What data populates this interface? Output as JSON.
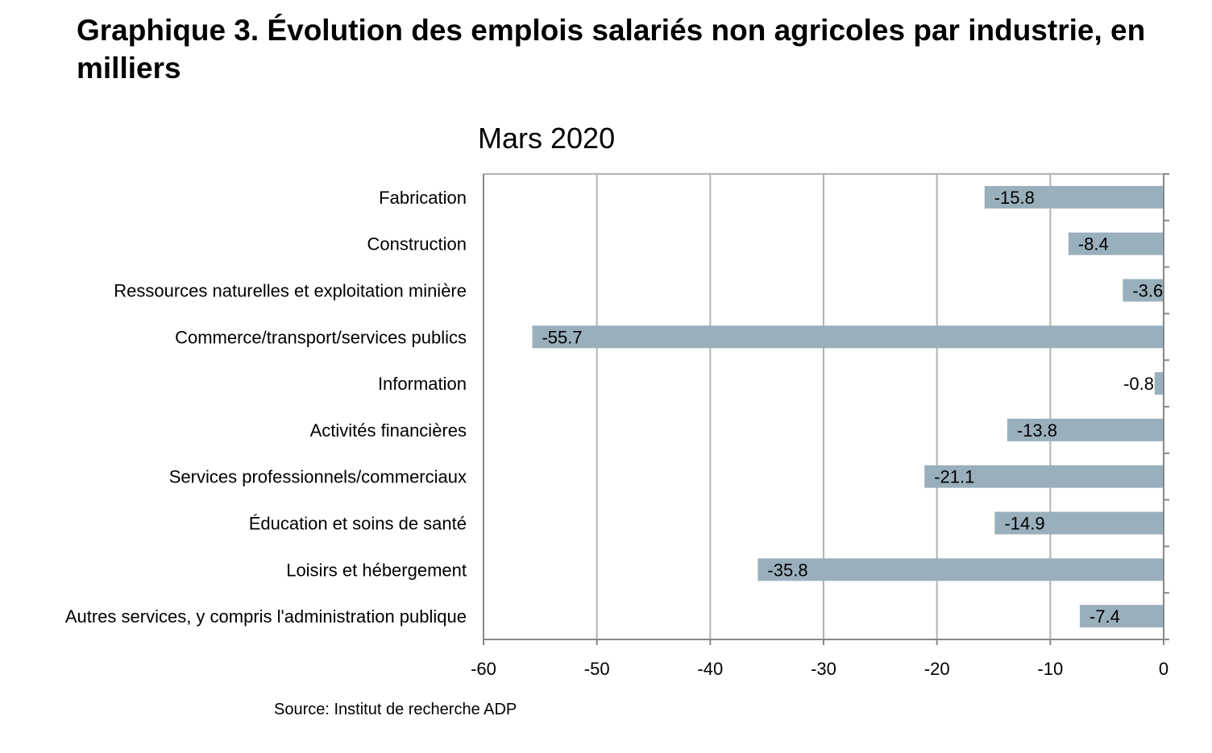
{
  "figure": {
    "title": "Graphique 3. Évolution des emplois salariés non agricoles par industrie, en milliers",
    "source": "Source: Institut de recherche ADP"
  },
  "colors": {
    "bar": "#9aafbc",
    "grid": "#b3b3b3",
    "axis": "#888888",
    "text": "#000000"
  },
  "chart_data": {
    "type": "bar",
    "orientation": "horizontal",
    "title": "Mars 2020",
    "xlabel": "",
    "ylabel": "",
    "xlim": [
      -60,
      0
    ],
    "xticks": [
      -60,
      -50,
      -40,
      -30,
      -20,
      -10,
      0
    ],
    "grid": true,
    "legend": "none",
    "categories": [
      "Fabrication",
      "Construction",
      "Ressources naturelles et exploitation minière",
      "Commerce/transport/services publics",
      "Information",
      "Activités financières",
      "Services professionnels/commerciaux",
      "Éducation et soins de santé",
      "Loisirs et hébergement",
      "Autres services, y compris l'administration publique"
    ],
    "values": [
      -15.8,
      -8.4,
      -3.6,
      -55.7,
      -0.8,
      -13.8,
      -21.1,
      -14.9,
      -35.8,
      -7.4
    ],
    "data_labels": [
      "-15.8",
      "-8.4",
      "-3.6",
      "-55.7",
      "-0.8",
      "-13.8",
      "-21.1",
      "-14.9",
      "-35.8",
      "-7.4"
    ]
  }
}
